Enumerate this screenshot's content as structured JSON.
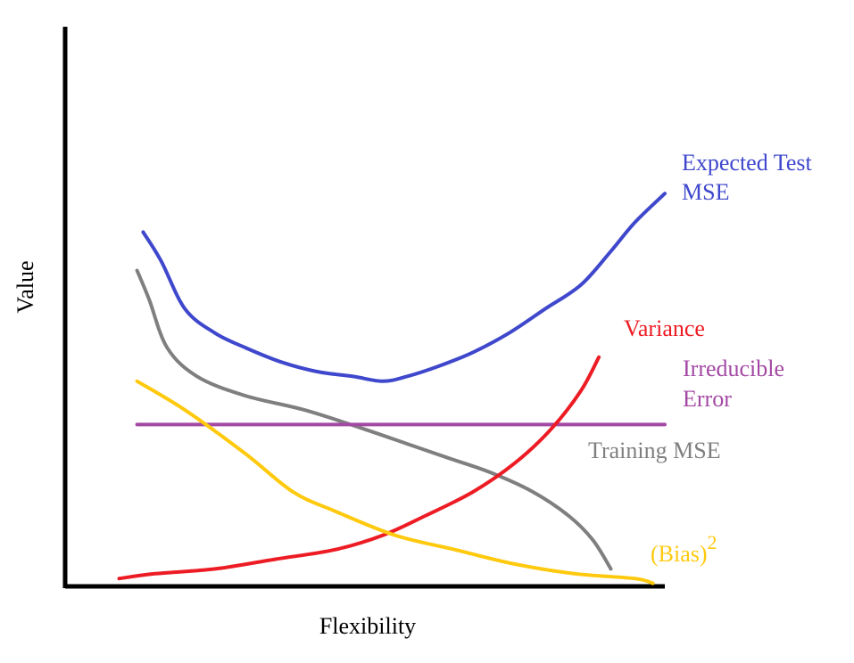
{
  "chart_data": {
    "type": "line",
    "title": "",
    "xlabel": "Flexibility",
    "ylabel": "Value",
    "xlim": [
      0,
      1
    ],
    "ylim": [
      0,
      1
    ],
    "grid": false,
    "legend": "none",
    "series": [
      {
        "name": "Expected Test MSE",
        "label_lines": [
          "Expected Test",
          "MSE"
        ],
        "color": "#3f48cc",
        "x": [
          0.13,
          0.16,
          0.2,
          0.25,
          0.3,
          0.36,
          0.42,
          0.48,
          0.53,
          0.57,
          0.62,
          0.68,
          0.74,
          0.8,
          0.86,
          0.91,
          0.95,
          1.0
        ],
        "y": [
          0.74,
          0.68,
          0.58,
          0.53,
          0.5,
          0.47,
          0.45,
          0.44,
          0.43,
          0.44,
          0.46,
          0.49,
          0.53,
          0.58,
          0.63,
          0.7,
          0.76,
          0.82
        ]
      },
      {
        "name": "Training MSE",
        "label_lines": [
          "Training MSE"
        ],
        "color": "#7f7f7f",
        "x": [
          0.12,
          0.14,
          0.17,
          0.22,
          0.3,
          0.4,
          0.5,
          0.57,
          0.64,
          0.71,
          0.78,
          0.84,
          0.88,
          0.91
        ],
        "y": [
          0.66,
          0.6,
          0.5,
          0.44,
          0.4,
          0.37,
          0.33,
          0.3,
          0.27,
          0.24,
          0.2,
          0.15,
          0.1,
          0.04
        ]
      },
      {
        "name": "Irreducible Error",
        "label_lines": [
          "Irreducible",
          "Error"
        ],
        "color": "#a349a4",
        "x": [
          0.12,
          1.0
        ],
        "y": [
          0.34,
          0.34
        ]
      },
      {
        "name": "Variance",
        "label_lines": [
          "Variance"
        ],
        "color": "#ed1c24",
        "x": [
          0.09,
          0.15,
          0.25,
          0.35,
          0.45,
          0.53,
          0.6,
          0.68,
          0.75,
          0.81,
          0.86,
          0.89
        ],
        "y": [
          0.02,
          0.03,
          0.04,
          0.06,
          0.08,
          0.11,
          0.15,
          0.2,
          0.26,
          0.33,
          0.41,
          0.48
        ]
      },
      {
        "name": "(Bias)^2",
        "label_lines": [
          "(Bias)"
        ],
        "label_sup": "2",
        "color": "#ffc90e",
        "x": [
          0.12,
          0.2,
          0.3,
          0.38,
          0.45,
          0.55,
          0.65,
          0.75,
          0.85,
          0.95,
          0.98
        ],
        "y": [
          0.43,
          0.37,
          0.28,
          0.2,
          0.16,
          0.11,
          0.08,
          0.05,
          0.03,
          0.02,
          0.01
        ]
      }
    ]
  }
}
